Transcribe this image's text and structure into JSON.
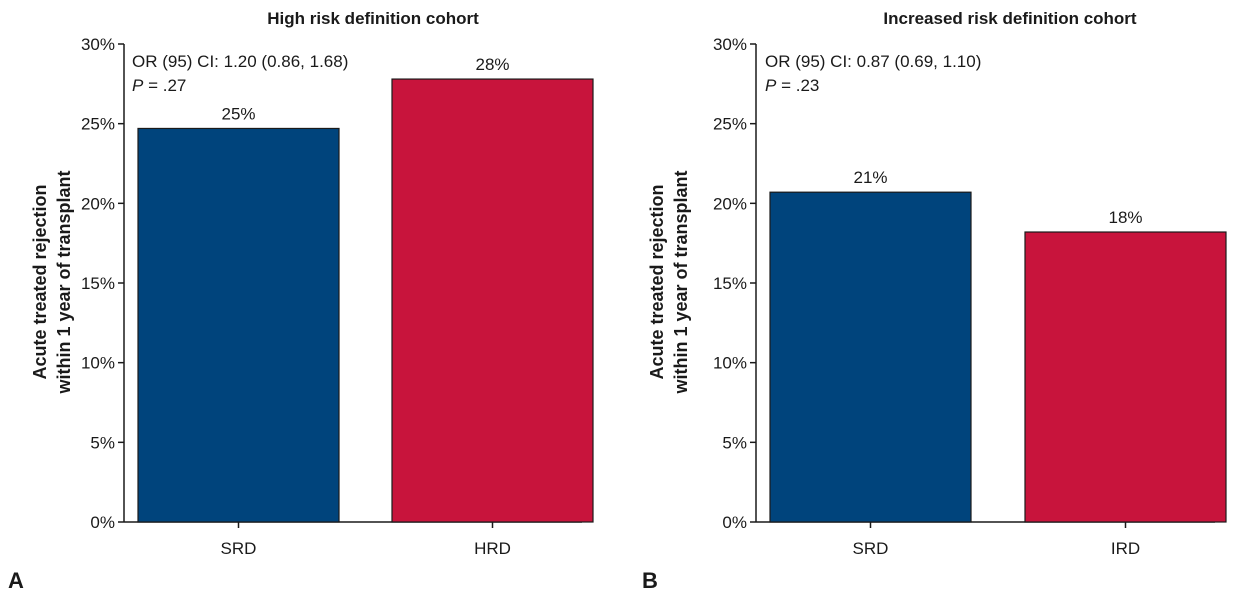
{
  "colors": {
    "SRD": "#00447c",
    "HRD": "#c8143c",
    "IRD": "#c8143c"
  },
  "chart_data": [
    {
      "type": "bar",
      "panel_label": "A",
      "title": "High risk definition cohort",
      "ylabel_lines": [
        "Acute treated rejection",
        "within 1 year of transplant"
      ],
      "categories": [
        "SRD",
        "HRD"
      ],
      "values": [
        24.7,
        27.8
      ],
      "data_labels": [
        "25%",
        "28%"
      ],
      "ylim": [
        0,
        30
      ],
      "yticks": [
        "0%",
        "5%",
        "10%",
        "15%",
        "20%",
        "25%",
        "30%"
      ],
      "stat_line1": "OR (95) CI: 1.20 (0.86, 1.68)",
      "p_symbol": "P",
      "p_value": " = .27",
      "grid": false,
      "legend": "none"
    },
    {
      "type": "bar",
      "panel_label": "B",
      "title": "Increased risk definition cohort",
      "ylabel_lines": [
        "Acute treated rejection",
        "within 1 year of transplant"
      ],
      "categories": [
        "SRD",
        "IRD"
      ],
      "values": [
        20.7,
        18.2
      ],
      "data_labels": [
        "21%",
        "18%"
      ],
      "ylim": [
        0,
        30
      ],
      "yticks": [
        "0%",
        "5%",
        "10%",
        "15%",
        "20%",
        "25%",
        "30%"
      ],
      "stat_line1": "OR (95) CI: 0.87 (0.69, 1.10)",
      "p_symbol": "P",
      "p_value": " = .23",
      "grid": false,
      "legend": "none"
    }
  ]
}
